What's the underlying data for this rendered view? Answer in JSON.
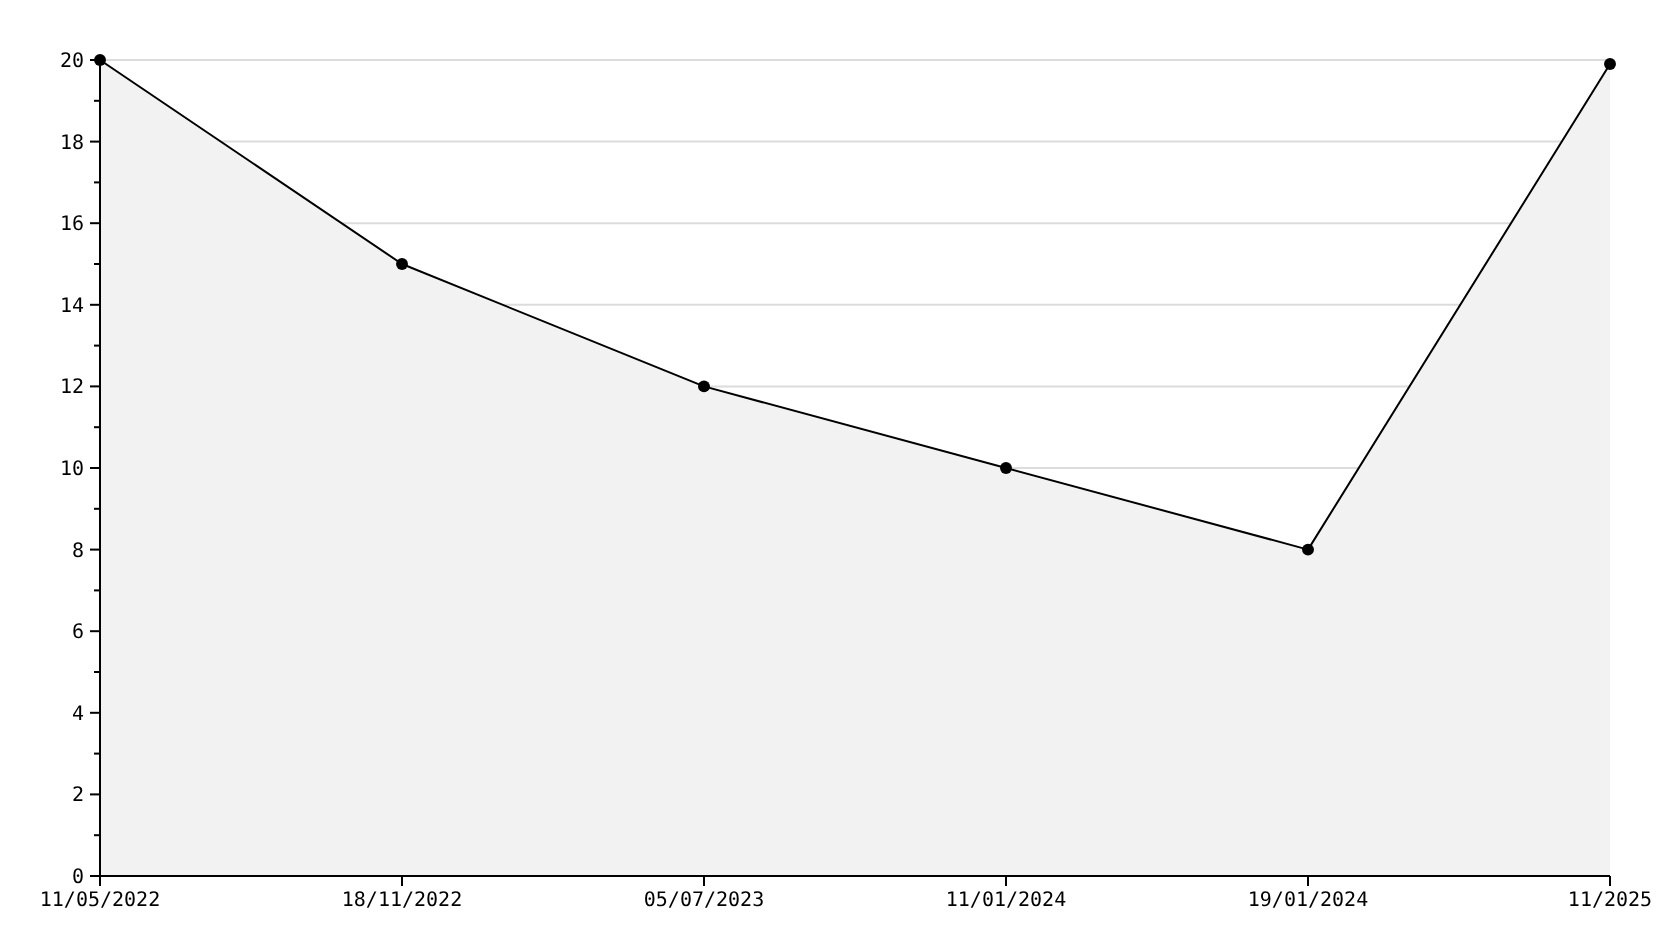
{
  "chart_data": {
    "type": "area",
    "categories": [
      "11/05/2022",
      "18/11/2022",
      "05/07/2023",
      "11/01/2024",
      "19/01/2024",
      "11/2025"
    ],
    "series": [
      {
        "color": "#000000",
        "values": [
          20,
          15,
          12,
          10,
          8,
          19.9
        ]
      }
    ],
    "ylim": [
      0,
      20
    ],
    "yticks": [
      0,
      {
        "value": 1,
        "label": null
      },
      2,
      {
        "value": 3,
        "label": null
      },
      4,
      {
        "value": 5,
        "label": null
      },
      6,
      {
        "value": 7,
        "label": null
      },
      8,
      {
        "value": 9,
        "label": null
      },
      10,
      {
        "value": 11,
        "label": null
      },
      12,
      {
        "value": 13,
        "label": null
      },
      14,
      {
        "value": 15,
        "label": null
      },
      16,
      {
        "value": 17,
        "label": null
      },
      18,
      {
        "value": 19,
        "label": null
      },
      20
    ],
    "grid": "y",
    "marker": "circle",
    "line_style": "solid"
  }
}
